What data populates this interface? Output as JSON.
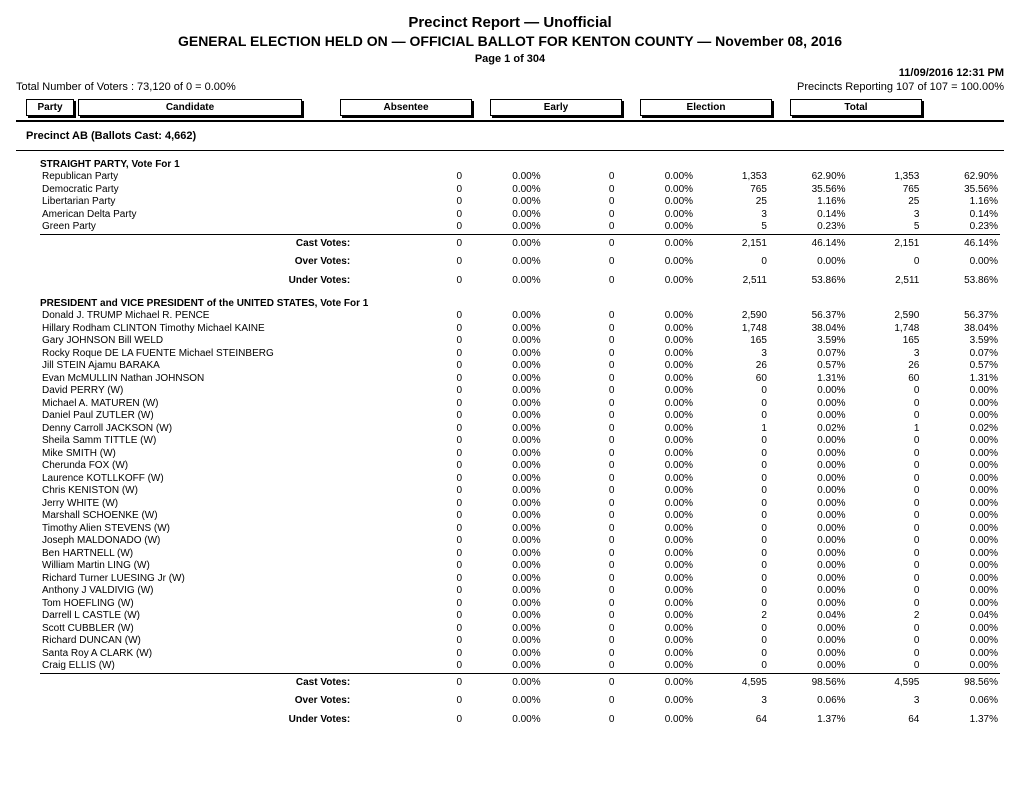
{
  "header": {
    "title1": "Precinct Report  —  Unofficial",
    "title2": "GENERAL ELECTION HELD ON  —  OFFICIAL BALLOT FOR KENTON COUNTY  —  November 08, 2016",
    "page": "Page 1 of 304",
    "timestamp": "11/09/2016 12:31 PM",
    "total_voters": "Total Number of Voters : 73,120 of 0 = 0.00%",
    "precincts_reporting": "Precincts Reporting 107 of 107 = 100.00%"
  },
  "column_headers": {
    "party": "Party",
    "candidate": "Candidate",
    "absentee": "Absentee",
    "early": "Early",
    "election": "Election",
    "total": "Total"
  },
  "precinct": "Precinct AB  (Ballots Cast: 4,662)",
  "contests": [
    {
      "name": "STRAIGHT PARTY, Vote For 1",
      "rows": [
        {
          "cand": "Republican Party",
          "a_n": "0",
          "a_p": "0.00%",
          "e_n": "0",
          "e_p": "0.00%",
          "el_n": "1,353",
          "el_p": "62.90%",
          "t_n": "1,353",
          "t_p": "62.90%"
        },
        {
          "cand": "Democratic Party",
          "a_n": "0",
          "a_p": "0.00%",
          "e_n": "0",
          "e_p": "0.00%",
          "el_n": "765",
          "el_p": "35.56%",
          "t_n": "765",
          "t_p": "35.56%"
        },
        {
          "cand": "Libertarian Party",
          "a_n": "0",
          "a_p": "0.00%",
          "e_n": "0",
          "e_p": "0.00%",
          "el_n": "25",
          "el_p": "1.16%",
          "t_n": "25",
          "t_p": "1.16%"
        },
        {
          "cand": "American Delta Party",
          "a_n": "0",
          "a_p": "0.00%",
          "e_n": "0",
          "e_p": "0.00%",
          "el_n": "3",
          "el_p": "0.14%",
          "t_n": "3",
          "t_p": "0.14%"
        },
        {
          "cand": "Green Party",
          "a_n": "0",
          "a_p": "0.00%",
          "e_n": "0",
          "e_p": "0.00%",
          "el_n": "5",
          "el_p": "0.23%",
          "t_n": "5",
          "t_p": "0.23%"
        }
      ],
      "summary": [
        {
          "label": "Cast Votes:",
          "a_n": "0",
          "a_p": "0.00%",
          "e_n": "0",
          "e_p": "0.00%",
          "el_n": "2,151",
          "el_p": "46.14%",
          "t_n": "2,151",
          "t_p": "46.14%"
        },
        {
          "label": "Over Votes:",
          "a_n": "0",
          "a_p": "0.00%",
          "e_n": "0",
          "e_p": "0.00%",
          "el_n": "0",
          "el_p": "0.00%",
          "t_n": "0",
          "t_p": "0.00%"
        },
        {
          "label": "Under Votes:",
          "a_n": "0",
          "a_p": "0.00%",
          "e_n": "0",
          "e_p": "0.00%",
          "el_n": "2,511",
          "el_p": "53.86%",
          "t_n": "2,511",
          "t_p": "53.86%"
        }
      ]
    },
    {
      "name": "PRESIDENT and VICE PRESIDENT of the UNITED STATES, Vote For 1",
      "rows": [
        {
          "cand": "Donald J. TRUMP Michael R. PENCE",
          "a_n": "0",
          "a_p": "0.00%",
          "e_n": "0",
          "e_p": "0.00%",
          "el_n": "2,590",
          "el_p": "56.37%",
          "t_n": "2,590",
          "t_p": "56.37%"
        },
        {
          "cand": "Hillary Rodham CLINTON Timothy Michael KAINE",
          "a_n": "0",
          "a_p": "0.00%",
          "e_n": "0",
          "e_p": "0.00%",
          "el_n": "1,748",
          "el_p": "38.04%",
          "t_n": "1,748",
          "t_p": "38.04%"
        },
        {
          "cand": "Gary JOHNSON Bill WELD",
          "a_n": "0",
          "a_p": "0.00%",
          "e_n": "0",
          "e_p": "0.00%",
          "el_n": "165",
          "el_p": "3.59%",
          "t_n": "165",
          "t_p": "3.59%"
        },
        {
          "cand": "Rocky Roque DE LA FUENTE Michael STEINBERG",
          "a_n": "0",
          "a_p": "0.00%",
          "e_n": "0",
          "e_p": "0.00%",
          "el_n": "3",
          "el_p": "0.07%",
          "t_n": "3",
          "t_p": "0.07%"
        },
        {
          "cand": "Jill STEIN Ajamu BARAKA",
          "a_n": "0",
          "a_p": "0.00%",
          "e_n": "0",
          "e_p": "0.00%",
          "el_n": "26",
          "el_p": "0.57%",
          "t_n": "26",
          "t_p": "0.57%"
        },
        {
          "cand": "Evan McMULLIN Nathan JOHNSON",
          "a_n": "0",
          "a_p": "0.00%",
          "e_n": "0",
          "e_p": "0.00%",
          "el_n": "60",
          "el_p": "1.31%",
          "t_n": "60",
          "t_p": "1.31%"
        },
        {
          "cand": "David PERRY (W)",
          "a_n": "0",
          "a_p": "0.00%",
          "e_n": "0",
          "e_p": "0.00%",
          "el_n": "0",
          "el_p": "0.00%",
          "t_n": "0",
          "t_p": "0.00%"
        },
        {
          "cand": "Michael A. MATUREN (W)",
          "a_n": "0",
          "a_p": "0.00%",
          "e_n": "0",
          "e_p": "0.00%",
          "el_n": "0",
          "el_p": "0.00%",
          "t_n": "0",
          "t_p": "0.00%"
        },
        {
          "cand": "Daniel Paul ZUTLER (W)",
          "a_n": "0",
          "a_p": "0.00%",
          "e_n": "0",
          "e_p": "0.00%",
          "el_n": "0",
          "el_p": "0.00%",
          "t_n": "0",
          "t_p": "0.00%"
        },
        {
          "cand": "Denny Carroll JACKSON (W)",
          "a_n": "0",
          "a_p": "0.00%",
          "e_n": "0",
          "e_p": "0.00%",
          "el_n": "1",
          "el_p": "0.02%",
          "t_n": "1",
          "t_p": "0.02%"
        },
        {
          "cand": "Sheila Samm TITTLE (W)",
          "a_n": "0",
          "a_p": "0.00%",
          "e_n": "0",
          "e_p": "0.00%",
          "el_n": "0",
          "el_p": "0.00%",
          "t_n": "0",
          "t_p": "0.00%"
        },
        {
          "cand": "Mike SMITH (W)",
          "a_n": "0",
          "a_p": "0.00%",
          "e_n": "0",
          "e_p": "0.00%",
          "el_n": "0",
          "el_p": "0.00%",
          "t_n": "0",
          "t_p": "0.00%"
        },
        {
          "cand": "Cherunda FOX (W)",
          "a_n": "0",
          "a_p": "0.00%",
          "e_n": "0",
          "e_p": "0.00%",
          "el_n": "0",
          "el_p": "0.00%",
          "t_n": "0",
          "t_p": "0.00%"
        },
        {
          "cand": "Laurence KOTLLKOFF (W)",
          "a_n": "0",
          "a_p": "0.00%",
          "e_n": "0",
          "e_p": "0.00%",
          "el_n": "0",
          "el_p": "0.00%",
          "t_n": "0",
          "t_p": "0.00%"
        },
        {
          "cand": "Chris KENISTON (W)",
          "a_n": "0",
          "a_p": "0.00%",
          "e_n": "0",
          "e_p": "0.00%",
          "el_n": "0",
          "el_p": "0.00%",
          "t_n": "0",
          "t_p": "0.00%"
        },
        {
          "cand": "Jerry WHITE (W)",
          "a_n": "0",
          "a_p": "0.00%",
          "e_n": "0",
          "e_p": "0.00%",
          "el_n": "0",
          "el_p": "0.00%",
          "t_n": "0",
          "t_p": "0.00%"
        },
        {
          "cand": "Marshall SCHOENKE (W)",
          "a_n": "0",
          "a_p": "0.00%",
          "e_n": "0",
          "e_p": "0.00%",
          "el_n": "0",
          "el_p": "0.00%",
          "t_n": "0",
          "t_p": "0.00%"
        },
        {
          "cand": "Timothy Alien STEVENS (W)",
          "a_n": "0",
          "a_p": "0.00%",
          "e_n": "0",
          "e_p": "0.00%",
          "el_n": "0",
          "el_p": "0.00%",
          "t_n": "0",
          "t_p": "0.00%"
        },
        {
          "cand": "Joseph MALDONADO (W)",
          "a_n": "0",
          "a_p": "0.00%",
          "e_n": "0",
          "e_p": "0.00%",
          "el_n": "0",
          "el_p": "0.00%",
          "t_n": "0",
          "t_p": "0.00%"
        },
        {
          "cand": "Ben HARTNELL (W)",
          "a_n": "0",
          "a_p": "0.00%",
          "e_n": "0",
          "e_p": "0.00%",
          "el_n": "0",
          "el_p": "0.00%",
          "t_n": "0",
          "t_p": "0.00%"
        },
        {
          "cand": "William Martin LING (W)",
          "a_n": "0",
          "a_p": "0.00%",
          "e_n": "0",
          "e_p": "0.00%",
          "el_n": "0",
          "el_p": "0.00%",
          "t_n": "0",
          "t_p": "0.00%"
        },
        {
          "cand": "Richard Turner LUESING Jr (W)",
          "a_n": "0",
          "a_p": "0.00%",
          "e_n": "0",
          "e_p": "0.00%",
          "el_n": "0",
          "el_p": "0.00%",
          "t_n": "0",
          "t_p": "0.00%"
        },
        {
          "cand": "Anthony J VALDIVIG (W)",
          "a_n": "0",
          "a_p": "0.00%",
          "e_n": "0",
          "e_p": "0.00%",
          "el_n": "0",
          "el_p": "0.00%",
          "t_n": "0",
          "t_p": "0.00%"
        },
        {
          "cand": "Tom HOEFLING (W)",
          "a_n": "0",
          "a_p": "0.00%",
          "e_n": "0",
          "e_p": "0.00%",
          "el_n": "0",
          "el_p": "0.00%",
          "t_n": "0",
          "t_p": "0.00%"
        },
        {
          "cand": "Darrell L CASTLE (W)",
          "a_n": "0",
          "a_p": "0.00%",
          "e_n": "0",
          "e_p": "0.00%",
          "el_n": "2",
          "el_p": "0.04%",
          "t_n": "2",
          "t_p": "0.04%"
        },
        {
          "cand": "Scott CUBBLER (W)",
          "a_n": "0",
          "a_p": "0.00%",
          "e_n": "0",
          "e_p": "0.00%",
          "el_n": "0",
          "el_p": "0.00%",
          "t_n": "0",
          "t_p": "0.00%"
        },
        {
          "cand": "Richard DUNCAN (W)",
          "a_n": "0",
          "a_p": "0.00%",
          "e_n": "0",
          "e_p": "0.00%",
          "el_n": "0",
          "el_p": "0.00%",
          "t_n": "0",
          "t_p": "0.00%"
        },
        {
          "cand": "Santa Roy A CLARK (W)",
          "a_n": "0",
          "a_p": "0.00%",
          "e_n": "0",
          "e_p": "0.00%",
          "el_n": "0",
          "el_p": "0.00%",
          "t_n": "0",
          "t_p": "0.00%"
        },
        {
          "cand": "Craig ELLIS (W)",
          "a_n": "0",
          "a_p": "0.00%",
          "e_n": "0",
          "e_p": "0.00%",
          "el_n": "0",
          "el_p": "0.00%",
          "t_n": "0",
          "t_p": "0.00%"
        }
      ],
      "summary": [
        {
          "label": "Cast Votes:",
          "a_n": "0",
          "a_p": "0.00%",
          "e_n": "0",
          "e_p": "0.00%",
          "el_n": "4,595",
          "el_p": "98.56%",
          "t_n": "4,595",
          "t_p": "98.56%"
        },
        {
          "label": "Over Votes:",
          "a_n": "0",
          "a_p": "0.00%",
          "e_n": "0",
          "e_p": "0.00%",
          "el_n": "3",
          "el_p": "0.06%",
          "t_n": "3",
          "t_p": "0.06%"
        },
        {
          "label": "Under Votes:",
          "a_n": "0",
          "a_p": "0.00%",
          "e_n": "0",
          "e_p": "0.00%",
          "el_n": "64",
          "el_p": "1.37%",
          "t_n": "64",
          "t_p": "1.37%"
        }
      ]
    }
  ]
}
